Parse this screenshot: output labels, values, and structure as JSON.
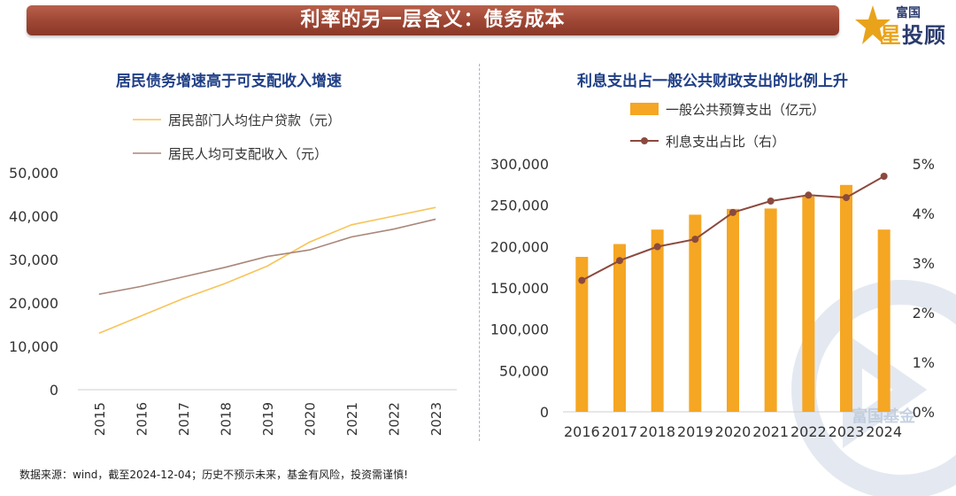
{
  "header": {
    "title": "利率的另一层含义：债务成本"
  },
  "logo": {
    "line1": "富国",
    "line2_a": "星",
    "line2_b": "投顾"
  },
  "watermark": {
    "text": "富国基金"
  },
  "footer": {
    "source": "数据来源：wind，截至2024-12-04；历史不预示未来，基金有风险，投资需谨慎!"
  },
  "colors": {
    "banner": "#a04a36",
    "title_blue": "#1f3e86",
    "loan_line": "#f7c45a",
    "income_line": "#a9877a",
    "bar": "#f5a623",
    "ratio_line": "#8b4a3e"
  },
  "chart_data": [
    {
      "type": "line",
      "title": "居民债务增速高于可支配收入增速",
      "categories": [
        "2015",
        "2016",
        "2017",
        "2018",
        "2019",
        "2020",
        "2021",
        "2022",
        "2023"
      ],
      "series": [
        {
          "name": "居民部门人均住户贷款（元）",
          "values": [
            13000,
            17000,
            21000,
            24500,
            28500,
            34000,
            38000,
            40000,
            42000
          ]
        },
        {
          "name": "居民人均可支配收入（元）",
          "values": [
            22000,
            23800,
            26000,
            28200,
            30700,
            32200,
            35200,
            37000,
            39300
          ]
        }
      ],
      "yticks": [
        "0",
        "10,000",
        "20,000",
        "30,000",
        "40,000",
        "50,000"
      ],
      "ylim": [
        0,
        50000
      ],
      "legend": "top-left",
      "grid": false
    },
    {
      "type": "bar+line",
      "title": "利息支出占一般公共财政支出的比例上升",
      "categories": [
        "2016",
        "2017",
        "2018",
        "2019",
        "2020",
        "2021",
        "2022",
        "2023",
        "2024"
      ],
      "series": [
        {
          "name": "一般公共预算支出（亿元）",
          "type": "bar",
          "axis": "left",
          "values": [
            187500,
            203000,
            220500,
            238500,
            245500,
            246000,
            260500,
            274500,
            220500
          ]
        },
        {
          "name": "利息支出占比（右）",
          "type": "line",
          "axis": "right",
          "values": [
            2.65,
            3.05,
            3.33,
            3.48,
            4.02,
            4.25,
            4.37,
            4.32,
            4.75
          ]
        }
      ],
      "yticks_left": [
        "0",
        "50,000",
        "100,000",
        "150,000",
        "200,000",
        "250,000",
        "300,000"
      ],
      "yticks_right": [
        "0%",
        "1%",
        "2%",
        "3%",
        "4%",
        "5%"
      ],
      "ylim_left": [
        0,
        300000
      ],
      "ylim_right": [
        0,
        5
      ],
      "legend": "top",
      "grid": false
    }
  ]
}
